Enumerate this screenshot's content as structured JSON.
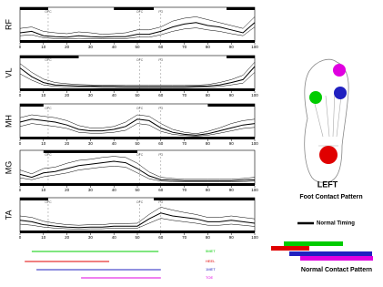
{
  "chart_data": [
    {
      "type": "line",
      "ylabel": "RF",
      "x": [
        0,
        5,
        10,
        15,
        20,
        25,
        30,
        35,
        40,
        45,
        50,
        55,
        60,
        65,
        70,
        75,
        80,
        85,
        90,
        95,
        100
      ],
      "xlim": [
        0,
        100
      ],
      "ylim": [
        0,
        1
      ],
      "xticks": [
        0,
        10,
        20,
        30,
        40,
        50,
        60,
        70,
        80,
        90,
        100
      ],
      "values": [
        0.25,
        0.3,
        0.15,
        0.12,
        0.1,
        0.15,
        0.12,
        0.1,
        0.12,
        0.12,
        0.2,
        0.2,
        0.3,
        0.45,
        0.55,
        0.6,
        0.5,
        0.45,
        0.35,
        0.25,
        0.6
      ],
      "upper": [
        0.4,
        0.45,
        0.3,
        0.25,
        0.22,
        0.28,
        0.25,
        0.2,
        0.22,
        0.25,
        0.35,
        0.35,
        0.45,
        0.65,
        0.75,
        0.8,
        0.7,
        0.6,
        0.5,
        0.4,
        0.8
      ],
      "lower": [
        0.15,
        0.18,
        0.08,
        0.05,
        0.04,
        0.06,
        0.05,
        0.04,
        0.05,
        0.05,
        0.1,
        0.1,
        0.18,
        0.3,
        0.38,
        0.42,
        0.35,
        0.3,
        0.22,
        0.15,
        0.45
      ],
      "timing": [
        [
          0,
          12
        ],
        [
          40,
          57
        ],
        [
          88,
          100
        ]
      ],
      "events": [
        {
          "x": 12,
          "label": "OFC"
        },
        {
          "x": 51,
          "label": "OFC"
        },
        {
          "x": 60,
          "label": "FO"
        }
      ]
    },
    {
      "type": "line",
      "ylabel": "VL",
      "x": [
        0,
        5,
        10,
        15,
        20,
        25,
        30,
        35,
        40,
        45,
        50,
        55,
        60,
        65,
        70,
        75,
        80,
        85,
        90,
        95,
        100
      ],
      "xlim": [
        0,
        100
      ],
      "ylim": [
        0,
        1
      ],
      "xticks": [
        0,
        10,
        20,
        30,
        40,
        50,
        60,
        70,
        80,
        90,
        100
      ],
      "values": [
        0.7,
        0.4,
        0.2,
        0.12,
        0.1,
        0.08,
        0.08,
        0.07,
        0.07,
        0.06,
        0.06,
        0.06,
        0.06,
        0.06,
        0.06,
        0.07,
        0.08,
        0.12,
        0.2,
        0.3,
        0.75
      ],
      "upper": [
        0.85,
        0.55,
        0.32,
        0.2,
        0.16,
        0.13,
        0.12,
        0.11,
        0.11,
        0.1,
        0.1,
        0.1,
        0.1,
        0.1,
        0.1,
        0.11,
        0.13,
        0.2,
        0.3,
        0.45,
        0.9
      ],
      "lower": [
        0.5,
        0.28,
        0.12,
        0.07,
        0.05,
        0.04,
        0.04,
        0.03,
        0.03,
        0.03,
        0.03,
        0.03,
        0.03,
        0.03,
        0.03,
        0.04,
        0.04,
        0.07,
        0.12,
        0.18,
        0.55
      ],
      "timing": [
        [
          0,
          25
        ],
        [
          88,
          100
        ]
      ],
      "events": [
        {
          "x": 12,
          "label": "OFC"
        },
        {
          "x": 51,
          "label": "OFC"
        },
        {
          "x": 60,
          "label": "FO"
        }
      ]
    },
    {
      "type": "line",
      "ylabel": "MH",
      "x": [
        0,
        5,
        10,
        15,
        20,
        25,
        30,
        35,
        40,
        45,
        50,
        55,
        60,
        65,
        70,
        75,
        80,
        85,
        90,
        95,
        100
      ],
      "xlim": [
        0,
        100
      ],
      "ylim": [
        0,
        1
      ],
      "xticks": [
        0,
        10,
        20,
        30,
        40,
        50,
        60,
        70,
        80,
        90,
        100
      ],
      "values": [
        0.5,
        0.6,
        0.55,
        0.5,
        0.4,
        0.25,
        0.2,
        0.2,
        0.25,
        0.35,
        0.6,
        0.55,
        0.3,
        0.15,
        0.08,
        0.05,
        0.1,
        0.2,
        0.3,
        0.4,
        0.45
      ],
      "upper": [
        0.65,
        0.75,
        0.7,
        0.65,
        0.55,
        0.38,
        0.3,
        0.3,
        0.35,
        0.5,
        0.75,
        0.7,
        0.45,
        0.25,
        0.15,
        0.1,
        0.18,
        0.3,
        0.45,
        0.55,
        0.6
      ],
      "lower": [
        0.35,
        0.45,
        0.4,
        0.35,
        0.28,
        0.15,
        0.12,
        0.12,
        0.15,
        0.22,
        0.45,
        0.4,
        0.18,
        0.08,
        0.04,
        0.02,
        0.05,
        0.12,
        0.2,
        0.28,
        0.32
      ],
      "timing": [
        [
          0,
          10
        ],
        [
          80,
          100
        ]
      ],
      "events": [
        {
          "x": 12,
          "label": "OFC"
        },
        {
          "x": 51,
          "label": "OFC"
        },
        {
          "x": 60,
          "label": "FO"
        }
      ]
    },
    {
      "type": "line",
      "ylabel": "MG",
      "x": [
        0,
        5,
        10,
        15,
        20,
        25,
        30,
        35,
        40,
        45,
        50,
        55,
        60,
        65,
        70,
        75,
        80,
        85,
        90,
        95,
        100
      ],
      "xlim": [
        0,
        100
      ],
      "ylim": [
        0,
        1
      ],
      "xticks": [
        0,
        10,
        20,
        30,
        40,
        50,
        60,
        70,
        80,
        90,
        100
      ],
      "values": [
        0.3,
        0.2,
        0.35,
        0.4,
        0.5,
        0.6,
        0.65,
        0.7,
        0.75,
        0.7,
        0.5,
        0.25,
        0.12,
        0.1,
        0.08,
        0.08,
        0.08,
        0.08,
        0.08,
        0.1,
        0.12
      ],
      "upper": [
        0.45,
        0.32,
        0.5,
        0.55,
        0.68,
        0.78,
        0.82,
        0.88,
        0.92,
        0.88,
        0.68,
        0.38,
        0.2,
        0.16,
        0.13,
        0.13,
        0.13,
        0.13,
        0.13,
        0.16,
        0.2
      ],
      "lower": [
        0.18,
        0.12,
        0.22,
        0.28,
        0.35,
        0.45,
        0.5,
        0.55,
        0.58,
        0.55,
        0.35,
        0.15,
        0.07,
        0.05,
        0.04,
        0.04,
        0.04,
        0.04,
        0.04,
        0.05,
        0.07
      ],
      "timing": [
        [
          10,
          50
        ]
      ],
      "events": [
        {
          "x": 12,
          "label": "OFC"
        },
        {
          "x": 51,
          "label": "OFC"
        },
        {
          "x": 60,
          "label": "FO"
        }
      ]
    },
    {
      "type": "line",
      "ylabel": "TA",
      "x": [
        0,
        5,
        10,
        15,
        20,
        25,
        30,
        35,
        40,
        45,
        50,
        55,
        60,
        65,
        70,
        75,
        80,
        85,
        90,
        95,
        100
      ],
      "xlim": [
        0,
        100
      ],
      "ylim": [
        0,
        1
      ],
      "xticks": [
        0,
        10,
        20,
        30,
        40,
        50,
        60,
        70,
        80,
        90,
        100
      ],
      "values": [
        0.35,
        0.3,
        0.2,
        0.15,
        0.12,
        0.1,
        0.12,
        0.12,
        0.15,
        0.15,
        0.15,
        0.4,
        0.6,
        0.5,
        0.45,
        0.4,
        0.3,
        0.3,
        0.35,
        0.3,
        0.25
      ],
      "upper": [
        0.5,
        0.45,
        0.32,
        0.25,
        0.2,
        0.18,
        0.2,
        0.2,
        0.24,
        0.24,
        0.25,
        0.55,
        0.8,
        0.7,
        0.62,
        0.55,
        0.45,
        0.45,
        0.5,
        0.45,
        0.4
      ],
      "lower": [
        0.22,
        0.18,
        0.12,
        0.08,
        0.06,
        0.05,
        0.06,
        0.06,
        0.08,
        0.08,
        0.08,
        0.25,
        0.42,
        0.35,
        0.3,
        0.25,
        0.18,
        0.18,
        0.22,
        0.18,
        0.14
      ],
      "timing": [
        [
          0,
          12
        ],
        [
          57,
          100
        ]
      ],
      "events": [
        {
          "x": 12,
          "label": "OFC"
        },
        {
          "x": 51,
          "label": "OFC"
        },
        {
          "x": 60,
          "label": "FO"
        }
      ]
    },
    {
      "type": "range",
      "xlim": [
        0,
        100
      ],
      "categories": [
        "5MET",
        "HEEL",
        "1MET",
        "TOE"
      ],
      "colors": [
        "#00cc00",
        "#e00000",
        "#2020c0",
        "#e000e0"
      ],
      "starts": [
        5,
        2,
        7,
        26
      ],
      "ends": [
        59,
        38,
        60,
        60
      ]
    }
  ],
  "foot": {
    "side": "LEFT",
    "caption": "Foot Contact Pattern"
  },
  "legend": {
    "timing": "Normal Timing",
    "contact": "Normal Contact Pattern"
  }
}
